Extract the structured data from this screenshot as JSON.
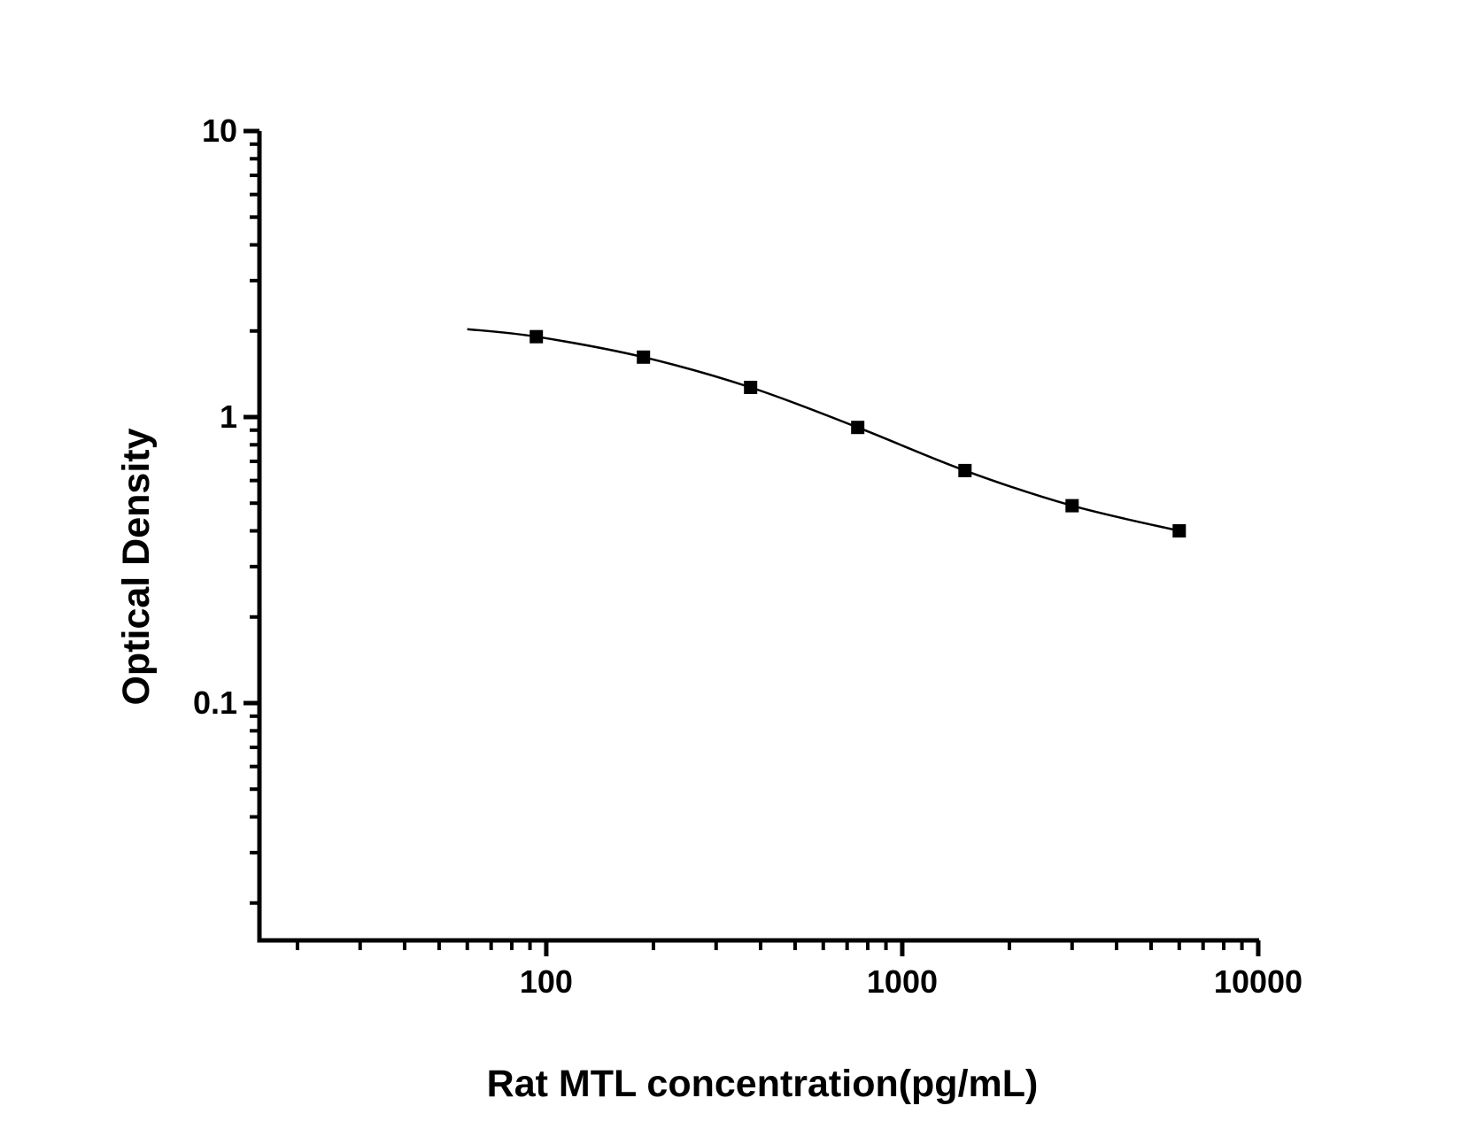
{
  "figure": {
    "background_color": "#ffffff",
    "foreground_color": "#000000"
  },
  "chart_data": {
    "type": "line",
    "title": "",
    "xlabel": "Rat MTL concentration(pg/mL)",
    "ylabel": "Optical Density",
    "x_scale": "log",
    "y_scale": "log",
    "xlim": [
      15.64,
      10058
    ],
    "ylim": [
      0.0148,
      10
    ],
    "grid": false,
    "legend": false,
    "x_axis": {
      "major_tick_values": [
        100,
        1000,
        10000
      ],
      "major_tick_labels": [
        "100",
        "1000",
        "10000"
      ]
    },
    "y_axis": {
      "major_tick_values": [
        10,
        1,
        0.1
      ],
      "major_tick_labels": [
        "10",
        "1",
        "0.1"
      ]
    },
    "series": [
      {
        "name": "rat-mtl-standard-curve",
        "color": "#000000",
        "marker": "filled-square",
        "curve_start": {
          "x": 60,
          "y": 2.03
        },
        "points": [
          {
            "x": 93.75,
            "y": 1.91
          },
          {
            "x": 187.5,
            "y": 1.62
          },
          {
            "x": 375,
            "y": 1.27
          },
          {
            "x": 750,
            "y": 0.92
          },
          {
            "x": 1500,
            "y": 0.65
          },
          {
            "x": 3000,
            "y": 0.49
          },
          {
            "x": 6000,
            "y": 0.4
          }
        ]
      }
    ]
  }
}
